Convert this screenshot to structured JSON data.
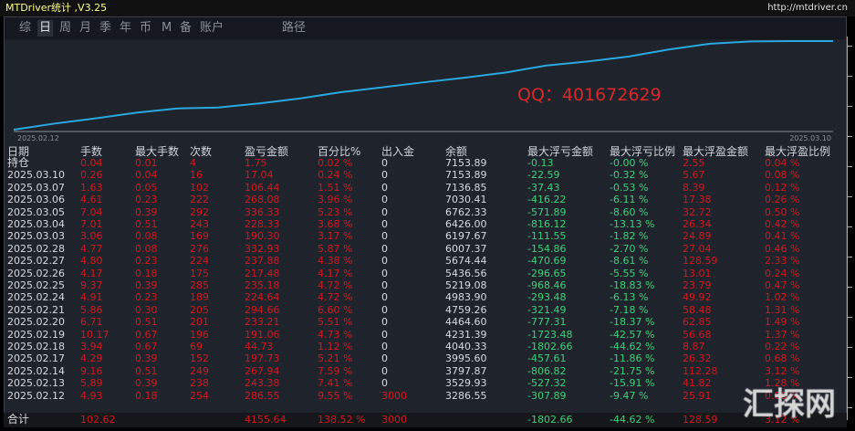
{
  "window": {
    "title": "MTDriver统计 ,V3.25",
    "url": "http://mtdriver.cn"
  },
  "tabs": [
    {
      "label": "综"
    },
    {
      "label": "日",
      "active": true
    },
    {
      "label": "周"
    },
    {
      "label": "月"
    },
    {
      "label": "季"
    },
    {
      "label": "年"
    },
    {
      "label": "币"
    },
    {
      "label": "M"
    },
    {
      "label": "备"
    },
    {
      "label": "账户"
    },
    {
      "label": "路径"
    }
  ],
  "chart": {
    "start_label": "2025.02.12",
    "end_label": "2025.03.10",
    "line_color": "#2aa8e0",
    "balance": [
      3000,
      3286.55,
      3529.93,
      3797.87,
      3995.6,
      4040.33,
      4231.39,
      4464.6,
      4759.26,
      4983.9,
      5219.08,
      5436.56,
      5674.44,
      6007.37,
      6197.67,
      6426.0,
      6762.33,
      7030.41,
      7136.85,
      7153.89,
      7153.89
    ]
  },
  "overlay": {
    "qq": "QQ：401672629",
    "watermark": "汇探网"
  },
  "table": {
    "headers": [
      "日期",
      "手数",
      "最大手数",
      "次数",
      "盈亏金额",
      "百分比%",
      "出入金",
      "余额",
      "最大浮亏金额",
      "最大浮亏比例",
      "最大浮盈金额",
      "最大浮盈比例"
    ],
    "rows": [
      [
        "持仓",
        "0.04",
        "0.01",
        "4",
        "1.75",
        "0.02 %",
        "0",
        "7153.89",
        "-0.13",
        "-0.00 %",
        "2.55",
        "0.04 %"
      ],
      [
        "2025.03.10",
        "0.26",
        "0.04",
        "16",
        "17.04",
        "0.24 %",
        "0",
        "7153.89",
        "-22.59",
        "-0.32 %",
        "5.67",
        "0.08 %"
      ],
      [
        "2025.03.07",
        "1.63",
        "0.05",
        "102",
        "106.44",
        "1.51 %",
        "0",
        "7136.85",
        "-37.43",
        "-0.53 %",
        "8.39",
        "0.12 %"
      ],
      [
        "2025.03.06",
        "4.61",
        "0.23",
        "222",
        "268.08",
        "3.96 %",
        "0",
        "7030.41",
        "-416.22",
        "-6.11 %",
        "17.38",
        "0.26 %"
      ],
      [
        "2025.03.05",
        "7.04",
        "0.39",
        "292",
        "336.33",
        "5.23 %",
        "0",
        "6762.33",
        "-571.89",
        "-8.60 %",
        "32.72",
        "0.50 %"
      ],
      [
        "2025.03.04",
        "7.01",
        "0.51",
        "243",
        "228.33",
        "3.68 %",
        "0",
        "6426.00",
        "-816.12",
        "-13.13 %",
        "26.34",
        "0.42 %"
      ],
      [
        "2025.03.03",
        "3.06",
        "0.08",
        "169",
        "190.30",
        "3.17 %",
        "0",
        "6197.67",
        "-111.55",
        "-1.82 %",
        "24.89",
        "0.41 %"
      ],
      [
        "2025.02.28",
        "4.77",
        "0.08",
        "276",
        "332.93",
        "5.87 %",
        "0",
        "6007.37",
        "-154.86",
        "-2.70 %",
        "27.04",
        "0.46 %"
      ],
      [
        "2025.02.27",
        "4.80",
        "0.23",
        "224",
        "237.88",
        "4.38 %",
        "0",
        "5674.44",
        "-470.69",
        "-8.61 %",
        "128.59",
        "2.33 %"
      ],
      [
        "2025.02.26",
        "4.17",
        "0.18",
        "175",
        "217.48",
        "4.17 %",
        "0",
        "5436.56",
        "-296.65",
        "-5.55 %",
        "13.01",
        "0.24 %"
      ],
      [
        "2025.02.25",
        "9.37",
        "0.39",
        "285",
        "235.18",
        "4.72 %",
        "0",
        "5219.08",
        "-968.46",
        "-18.83 %",
        "23.79",
        "0.47 %"
      ],
      [
        "2025.02.24",
        "4.91",
        "0.23",
        "189",
        "224.64",
        "4.72 %",
        "0",
        "4983.90",
        "-293.48",
        "-6.13 %",
        "49.92",
        "1.02 %"
      ],
      [
        "2025.02.21",
        "5.86",
        "0.30",
        "205",
        "294.66",
        "6.60 %",
        "0",
        "4759.26",
        "-321.49",
        "-7.18 %",
        "58.48",
        "1.31 %"
      ],
      [
        "2025.02.20",
        "6.71",
        "0.51",
        "201",
        "233.21",
        "5.51 %",
        "0",
        "4464.60",
        "-777.31",
        "-18.37 %",
        "62.85",
        "1.49 %"
      ],
      [
        "2025.02.19",
        "10.17",
        "0.67",
        "196",
        "191.06",
        "4.73 %",
        "0",
        "4231.39",
        "-1723.48",
        "-42.57 %",
        "56.68",
        "1.37 %"
      ],
      [
        "2025.02.18",
        "3.94",
        "0.67",
        "69",
        "44.73",
        "1.12 %",
        "0",
        "4040.33",
        "-1802.66",
        "-44.62 %",
        "8.87",
        "0.22 %"
      ],
      [
        "2025.02.17",
        "4.29",
        "0.39",
        "152",
        "197.73",
        "5.21 %",
        "0",
        "3995.60",
        "-457.61",
        "-11.86 %",
        "26.32",
        "0.68 %"
      ],
      [
        "2025.02.14",
        "9.16",
        "0.51",
        "249",
        "267.94",
        "7.59 %",
        "0",
        "3797.87",
        "-806.82",
        "-21.75 %",
        "112.28",
        "3.12 %"
      ],
      [
        "2025.02.13",
        "5.89",
        "0.39",
        "238",
        "243.38",
        "7.41 %",
        "0",
        "3529.93",
        "-527.32",
        "-15.91 %",
        "41.82",
        "1.28 %"
      ],
      [
        "2025.02.12",
        "4.93",
        "0.18",
        "254",
        "286.55",
        "9.55 %",
        "3000",
        "3286.55",
        "-307.89",
        "-9.47 %",
        "25.91",
        "0.86 %"
      ]
    ],
    "total": [
      "合计",
      "102.62",
      "",
      "",
      "4155.64",
      "138.52 %",
      "3000",
      "",
      "-1802.66",
      "-44.62 %",
      "128.59",
      "3.12 %"
    ]
  },
  "colors": {
    "positive": "#d1191e",
    "negative": "#3fd07a",
    "text": "#d6d9de",
    "background": "#1f232c"
  }
}
